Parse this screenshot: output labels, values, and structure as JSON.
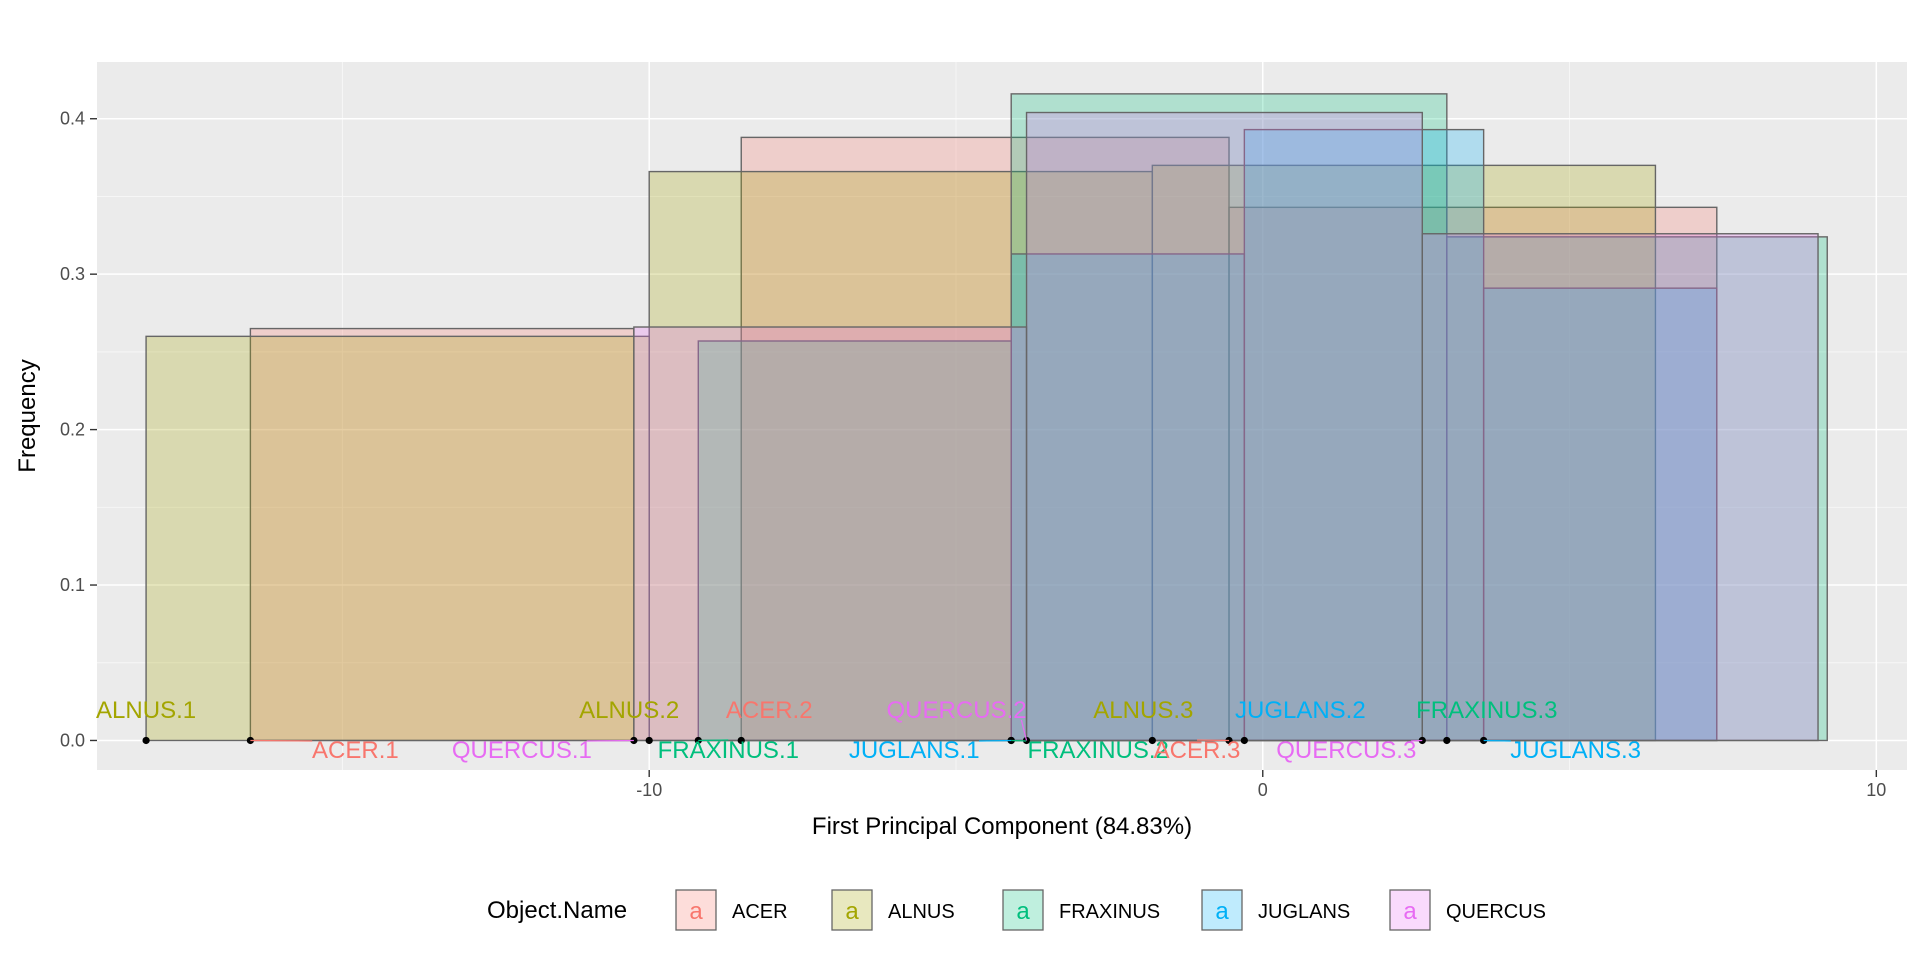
{
  "chart_data": {
    "type": "bar",
    "subtype": "overlapping-histogram-rectangles",
    "xlabel": "First Principal Component (84.83%)",
    "ylabel": "Frequency",
    "xlim": [
      -19.0,
      10.5
    ],
    "ylim": [
      -0.019,
      0.4365
    ],
    "x_ticks": [
      -10,
      0,
      10
    ],
    "x_tick_labels": [
      "-10",
      "0",
      "10"
    ],
    "y_ticks": [
      0.0,
      0.1,
      0.2,
      0.3,
      0.4
    ],
    "y_tick_labels": [
      "0.0",
      "0.1",
      "0.2",
      "0.3",
      "0.4"
    ],
    "grid": true,
    "legend": {
      "title": "Object.Name",
      "position": "bottom",
      "key_glyph": "a"
    },
    "series": [
      {
        "name": "ACER",
        "color": "#F8766D",
        "bars": [
          {
            "label": "ACER.1",
            "x0": -16.5,
            "x1": -10.25,
            "y": 0.265
          },
          {
            "label": "ACER.2",
            "x0": -8.5,
            "x1": -0.55,
            "y": 0.388
          },
          {
            "label": "ACER.3",
            "x0": -0.55,
            "x1": 7.4,
            "y": 0.343
          }
        ]
      },
      {
        "name": "ALNUS",
        "color": "#A3A500",
        "bars": [
          {
            "label": "ALNUS.1",
            "x0": -18.2,
            "x1": -10.0,
            "y": 0.26
          },
          {
            "label": "ALNUS.2",
            "x0": -10.0,
            "x1": -1.8,
            "y": 0.366
          },
          {
            "label": "ALNUS.3",
            "x0": -1.8,
            "x1": 6.4,
            "y": 0.37
          }
        ]
      },
      {
        "name": "FRAXINUS",
        "color": "#00BF7D",
        "bars": [
          {
            "label": "FRAXINUS.1",
            "x0": -9.2,
            "x1": -4.1,
            "y": 0.257
          },
          {
            "label": "FRAXINUS.2",
            "x0": -4.1,
            "x1": 3.0,
            "y": 0.416
          },
          {
            "label": "FRAXINUS.3",
            "x0": 3.0,
            "x1": 9.2,
            "y": 0.324
          }
        ]
      },
      {
        "name": "JUGLANS",
        "color": "#00B0F6",
        "bars": [
          {
            "label": "JUGLANS.1",
            "x0": -4.1,
            "x1": -0.3,
            "y": 0.313
          },
          {
            "label": "JUGLANS.2",
            "x0": -0.3,
            "x1": 3.6,
            "y": 0.393
          },
          {
            "label": "JUGLANS.3",
            "x0": 3.6,
            "x1": 7.4,
            "y": 0.291
          }
        ]
      },
      {
        "name": "QUERCUS",
        "color": "#E76BF3",
        "bars": [
          {
            "label": "QUERCUS.1",
            "x0": -10.25,
            "x1": -3.85,
            "y": 0.266
          },
          {
            "label": "QUERCUS.2",
            "x0": -3.85,
            "x1": 2.6,
            "y": 0.404
          },
          {
            "label": "QUERCUS.3",
            "x0": 2.6,
            "x1": 9.05,
            "y": 0.326
          }
        ]
      }
    ],
    "point_labels": [
      {
        "text": "ALNUS.1",
        "series": "ALNUS",
        "x": -18.2,
        "row": "upper",
        "dx": 0
      },
      {
        "text": "ACER.1",
        "series": "ACER",
        "x": -16.5,
        "row": "lower",
        "dx": 105
      },
      {
        "text": "ALNUS.2",
        "series": "ALNUS",
        "x": -10.0,
        "row": "upper",
        "dx": -20
      },
      {
        "text": "ACER.2",
        "series": "ACER",
        "x": -8.5,
        "row": "upper",
        "dx": 28
      },
      {
        "text": "QUERCUS.1",
        "series": "QUERCUS",
        "x": -10.25,
        "row": "lower",
        "dx": -112
      },
      {
        "text": "FRAXINUS.1",
        "series": "FRAXINUS",
        "x": -9.2,
        "row": "lower",
        "dx": 30
      },
      {
        "text": "JUGLANS.1",
        "series": "JUGLANS",
        "x": -4.1,
        "row": "lower",
        "dx": -97
      },
      {
        "text": "QUERCUS.2",
        "series": "QUERCUS",
        "x": -3.85,
        "row": "upper",
        "dx": -70
      },
      {
        "text": "FRAXINUS.2",
        "series": "FRAXINUS",
        "x": -4.1,
        "row": "lower",
        "dx": 87
      },
      {
        "text": "ALNUS.3",
        "series": "ALNUS",
        "x": -1.8,
        "row": "upper",
        "dx": -9
      },
      {
        "text": "ACER.3",
        "series": "ACER",
        "x": -0.55,
        "row": "lower",
        "dx": -32
      },
      {
        "text": "JUGLANS.2",
        "series": "JUGLANS",
        "x": -0.3,
        "row": "upper",
        "dx": 56
      },
      {
        "text": "QUERCUS.3",
        "series": "QUERCUS",
        "x": 2.6,
        "row": "lower",
        "dx": -76
      },
      {
        "text": "FRAXINUS.3",
        "series": "FRAXINUS",
        "x": 3.0,
        "row": "upper",
        "dx": 40
      },
      {
        "text": "JUGLANS.3",
        "series": "JUGLANS",
        "x": 3.6,
        "row": "lower",
        "dx": 92
      }
    ]
  }
}
